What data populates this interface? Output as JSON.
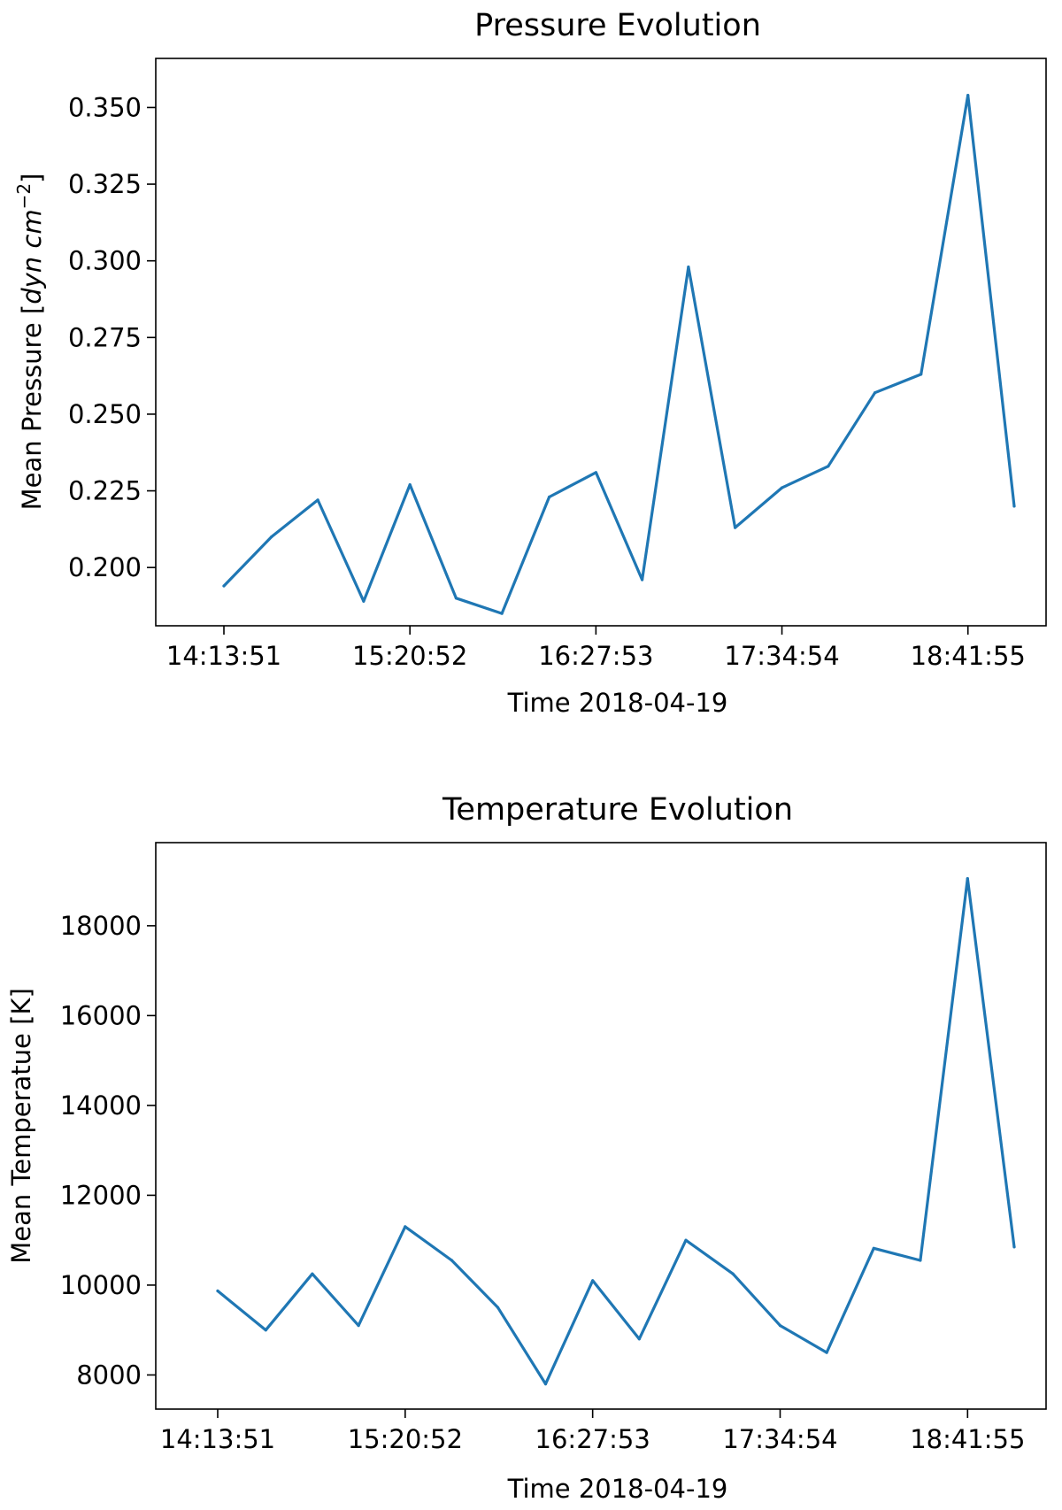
{
  "chart_data": [
    {
      "type": "line",
      "title": "Pressure Evolution",
      "xlabel": "Time 2018-04-19",
      "ylabel_main": "Mean Pressure [",
      "ylabel_italic": "dyn cm",
      "ylabel_sup": "−2",
      "ylabel_close": "]",
      "x": [
        "14:13:51",
        "14:31:01",
        "14:47:41",
        "15:04:11",
        "15:20:52",
        "15:37:31",
        "15:54:01",
        "16:11:03",
        "16:27:53",
        "16:44:33",
        "17:01:13",
        "17:18:02",
        "17:34:54",
        "17:51:33",
        "18:08:23",
        "18:25:01",
        "18:41:55",
        "18:58:35"
      ],
      "values": [
        0.194,
        0.21,
        0.222,
        0.189,
        0.227,
        0.19,
        0.185,
        0.223,
        0.231,
        0.196,
        0.298,
        0.213,
        0.226,
        0.233,
        0.257,
        0.263,
        0.354,
        0.22
      ],
      "xticks": [
        "14:13:51",
        "15:20:52",
        "16:27:53",
        "17:34:54",
        "18:41:55"
      ],
      "yticks": [
        "0.200",
        "0.225",
        "0.250",
        "0.275",
        "0.300",
        "0.325",
        "0.350"
      ],
      "ylim": [
        0.181,
        0.366
      ],
      "grid": false,
      "color": "#1f77b4"
    },
    {
      "type": "line",
      "title": "Temperature Evolution",
      "xlabel": "Time 2018-04-19",
      "ylabel": "Mean Temperatue [K]",
      "x": [
        "14:13:51",
        "14:31:01",
        "14:47:41",
        "15:04:11",
        "15:20:52",
        "15:37:31",
        "15:54:01",
        "16:11:03",
        "16:27:53",
        "16:44:33",
        "17:01:13",
        "17:18:02",
        "17:34:54",
        "17:51:33",
        "18:08:23",
        "18:25:01",
        "18:41:55",
        "18:58:35"
      ],
      "values": [
        9870,
        9000,
        10250,
        9100,
        11300,
        10550,
        9500,
        7800,
        10100,
        8800,
        11000,
        10250,
        9100,
        8500,
        10820,
        10550,
        19050,
        10850
      ],
      "xticks": [
        "14:13:51",
        "15:20:52",
        "16:27:53",
        "17:34:54",
        "18:41:55"
      ],
      "yticks": [
        "8000",
        "10000",
        "12000",
        "14000",
        "16000",
        "18000"
      ],
      "ylim": [
        7240,
        19850
      ],
      "grid": false,
      "color": "#1f77b4"
    }
  ]
}
